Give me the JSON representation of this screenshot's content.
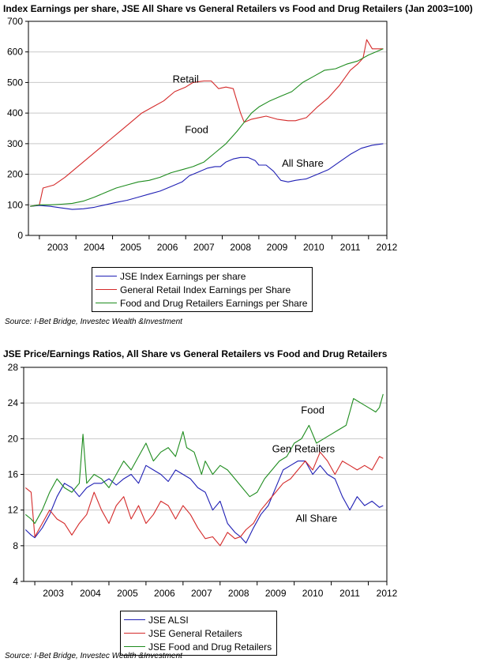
{
  "chart_data": [
    {
      "type": "line",
      "title": "Index Earnings per share, JSE All Share vs General Retailers vs Food and Drug Retailers (Jan 2003=100)",
      "xlabel": "",
      "ylabel": "",
      "xlim": [
        2002.7,
        2012.5
      ],
      "ylim": [
        0,
        700
      ],
      "yticks": [
        0,
        100,
        200,
        300,
        400,
        500,
        600,
        700
      ],
      "xticks": [
        "2003",
        "2004",
        "2005",
        "2006",
        "2007",
        "2008",
        "2009",
        "2010",
        "2011",
        "2012"
      ],
      "grid": true,
      "legend_position": "bottom",
      "annotations": [
        {
          "text": "Retail",
          "x": 2007.0,
          "y": 500
        },
        {
          "text": "Food",
          "x": 2007.3,
          "y": 335
        },
        {
          "text": "All Share",
          "x": 2010.2,
          "y": 225
        }
      ],
      "series": [
        {
          "name": "JSE Index Earnings per share",
          "color": "#1f1fb4",
          "x": [
            2002.75,
            2003.0,
            2003.3,
            2003.6,
            2003.9,
            2004.2,
            2004.5,
            2004.8,
            2005.1,
            2005.4,
            2005.7,
            2006.0,
            2006.3,
            2006.6,
            2006.9,
            2007.1,
            2007.4,
            2007.6,
            2007.8,
            2007.95,
            2008.1,
            2008.3,
            2008.5,
            2008.7,
            2008.9,
            2009.0,
            2009.2,
            2009.4,
            2009.6,
            2009.8,
            2010.0,
            2010.3,
            2010.6,
            2010.9,
            2011.2,
            2011.5,
            2011.8,
            2012.1,
            2012.4
          ],
          "y": [
            95,
            98,
            95,
            90,
            85,
            87,
            92,
            100,
            108,
            115,
            125,
            135,
            145,
            160,
            175,
            195,
            210,
            220,
            225,
            225,
            240,
            250,
            255,
            255,
            245,
            230,
            230,
            210,
            180,
            175,
            180,
            185,
            200,
            215,
            240,
            265,
            285,
            295,
            300
          ]
        },
        {
          "name": "General Retail Index Earnings per Share",
          "color": "#d42a2a",
          "x": [
            2002.75,
            2003.0,
            2003.1,
            2003.4,
            2003.7,
            2004.0,
            2004.3,
            2004.6,
            2004.9,
            2005.2,
            2005.5,
            2005.8,
            2006.1,
            2006.4,
            2006.7,
            2007.0,
            2007.2,
            2007.5,
            2007.7,
            2007.9,
            2008.1,
            2008.3,
            2008.5,
            2008.6,
            2008.8,
            2009.0,
            2009.2,
            2009.5,
            2009.8,
            2010.0,
            2010.3,
            2010.6,
            2010.9,
            2011.2,
            2011.5,
            2011.7,
            2011.85,
            2011.95,
            2012.1,
            2012.4
          ],
          "y": [
            95,
            100,
            155,
            165,
            190,
            220,
            250,
            280,
            310,
            340,
            370,
            400,
            420,
            440,
            470,
            485,
            500,
            505,
            505,
            480,
            485,
            480,
            400,
            370,
            380,
            385,
            390,
            380,
            375,
            375,
            385,
            420,
            450,
            490,
            540,
            560,
            580,
            640,
            610,
            610
          ]
        },
        {
          "name": "Food and Drug Retailers Earnings per Share",
          "color": "#1e8c1e",
          "x": [
            2002.75,
            2003.0,
            2003.3,
            2003.6,
            2003.9,
            2004.2,
            2004.5,
            2004.8,
            2005.1,
            2005.4,
            2005.7,
            2006.0,
            2006.3,
            2006.6,
            2006.9,
            2007.2,
            2007.5,
            2007.8,
            2008.1,
            2008.4,
            2008.6,
            2008.8,
            2009.0,
            2009.3,
            2009.6,
            2009.9,
            2010.2,
            2010.5,
            2010.8,
            2011.1,
            2011.4,
            2011.7,
            2012.0,
            2012.4
          ],
          "y": [
            95,
            100,
            100,
            102,
            105,
            112,
            125,
            140,
            155,
            165,
            175,
            180,
            190,
            205,
            215,
            225,
            240,
            270,
            300,
            340,
            370,
            400,
            420,
            440,
            455,
            470,
            500,
            520,
            540,
            545,
            560,
            570,
            590,
            610
          ]
        }
      ]
    },
    {
      "type": "line",
      "title": "JSE Price/Earnings Ratios, All Share vs General Retailers vs Food and Drug Retailers",
      "xlabel": "",
      "ylabel": "",
      "xlim": [
        2002.7,
        2012.5
      ],
      "ylim": [
        4,
        28
      ],
      "yticks": [
        4,
        8,
        12,
        16,
        20,
        24,
        28
      ],
      "xticks": [
        "2003",
        "2004",
        "2005",
        "2006",
        "2007",
        "2008",
        "2009",
        "2010",
        "2011",
        "2012"
      ],
      "grid": true,
      "legend_position": "bottom",
      "annotations": [
        {
          "text": "Food",
          "x": 2010.5,
          "y": 22.8
        },
        {
          "text": "Gen Retailers",
          "x": 2010.25,
          "y": 18.5
        },
        {
          "text": "All Share",
          "x": 2010.6,
          "y": 10.7
        }
      ],
      "series": [
        {
          "name": "JSE ALSI",
          "color": "#1f1fb4",
          "x": [
            2002.75,
            2002.9,
            2003.0,
            2003.2,
            2003.4,
            2003.6,
            2003.8,
            2004.0,
            2004.2,
            2004.4,
            2004.6,
            2004.8,
            2005.0,
            2005.2,
            2005.4,
            2005.6,
            2005.8,
            2006.0,
            2006.2,
            2006.4,
            2006.6,
            2006.8,
            2007.0,
            2007.2,
            2007.4,
            2007.6,
            2007.8,
            2008.0,
            2008.2,
            2008.4,
            2008.55,
            2008.7,
            2008.9,
            2009.1,
            2009.3,
            2009.5,
            2009.7,
            2009.9,
            2010.1,
            2010.3,
            2010.5,
            2010.7,
            2010.9,
            2011.1,
            2011.3,
            2011.5,
            2011.7,
            2011.9,
            2012.1,
            2012.3,
            2012.4
          ],
          "y": [
            9.8,
            9.2,
            8.9,
            10.0,
            11.5,
            13.5,
            15.0,
            14.5,
            13.5,
            14.5,
            15.0,
            15.0,
            15.5,
            14.8,
            15.5,
            16.0,
            15.0,
            17.0,
            16.5,
            16.0,
            15.2,
            16.5,
            16.0,
            15.5,
            14.5,
            14.0,
            12.0,
            13.0,
            10.5,
            9.5,
            9.0,
            8.3,
            10.0,
            11.5,
            12.5,
            14.5,
            16.5,
            17.0,
            17.5,
            17.5,
            16.0,
            17.0,
            16.0,
            15.5,
            13.5,
            12.0,
            13.5,
            12.5,
            13.0,
            12.3,
            12.5
          ]
        },
        {
          "name": "JSE General Retailers",
          "color": "#d42a2a",
          "x": [
            2002.75,
            2002.9,
            2003.0,
            2003.2,
            2003.4,
            2003.6,
            2003.8,
            2004.0,
            2004.2,
            2004.4,
            2004.6,
            2004.8,
            2005.0,
            2005.2,
            2005.4,
            2005.6,
            2005.8,
            2006.0,
            2006.2,
            2006.4,
            2006.6,
            2006.8,
            2007.0,
            2007.2,
            2007.4,
            2007.6,
            2007.8,
            2008.0,
            2008.2,
            2008.4,
            2008.55,
            2008.7,
            2008.9,
            2009.1,
            2009.3,
            2009.5,
            2009.7,
            2009.9,
            2010.1,
            2010.3,
            2010.5,
            2010.7,
            2010.9,
            2011.1,
            2011.3,
            2011.5,
            2011.7,
            2011.9,
            2012.1,
            2012.3,
            2012.4
          ],
          "y": [
            14.5,
            14.0,
            9.0,
            10.5,
            12.0,
            11.0,
            10.5,
            9.2,
            10.5,
            11.5,
            14.0,
            12.0,
            10.5,
            12.5,
            13.5,
            11.0,
            12.5,
            10.5,
            11.5,
            13.0,
            12.5,
            11.0,
            12.5,
            11.5,
            10.0,
            8.8,
            9.0,
            8.0,
            9.5,
            8.8,
            9.0,
            9.8,
            10.5,
            12.0,
            13.0,
            14.0,
            15.0,
            15.5,
            16.5,
            17.5,
            16.5,
            18.5,
            17.5,
            16.0,
            17.5,
            17.0,
            16.5,
            17.0,
            16.5,
            18.0,
            17.8
          ]
        },
        {
          "name": "JSE Food and Drug Retailers",
          "color": "#1e8c1e",
          "x": [
            2002.75,
            2002.9,
            2003.0,
            2003.2,
            2003.4,
            2003.6,
            2003.8,
            2004.0,
            2004.2,
            2004.3,
            2004.4,
            2004.6,
            2004.8,
            2005.0,
            2005.2,
            2005.4,
            2005.6,
            2005.8,
            2006.0,
            2006.2,
            2006.4,
            2006.6,
            2006.8,
            2007.0,
            2007.1,
            2007.3,
            2007.5,
            2007.6,
            2007.8,
            2008.0,
            2008.2,
            2008.4,
            2008.6,
            2008.8,
            2009.0,
            2009.2,
            2009.4,
            2009.6,
            2009.8,
            2010.0,
            2010.2,
            2010.4,
            2010.6,
            2010.8,
            2011.0,
            2011.2,
            2011.4,
            2011.5,
            2011.6,
            2011.8,
            2012.0,
            2012.2,
            2012.3,
            2012.4
          ],
          "y": [
            11.5,
            11.0,
            10.5,
            12.0,
            14.0,
            15.5,
            14.5,
            14.0,
            15.0,
            20.5,
            15.0,
            16.0,
            15.5,
            14.5,
            16.0,
            17.5,
            16.5,
            18.0,
            19.5,
            17.5,
            18.5,
            19.0,
            18.0,
            20.8,
            19.0,
            18.5,
            16.0,
            17.5,
            16.0,
            17.0,
            16.5,
            15.5,
            14.5,
            13.5,
            14.0,
            15.5,
            16.5,
            17.5,
            18.0,
            19.5,
            20.0,
            21.5,
            19.5,
            20.0,
            20.5,
            21.0,
            21.5,
            23.0,
            24.5,
            24.0,
            23.5,
            23.0,
            23.5,
            25.0
          ]
        }
      ]
    }
  ],
  "sources": [
    "Source: I-Bet Bridge, Investec Wealth &Investment",
    "Source: I-Bet Bridge, Investec Wealth &Investment"
  ]
}
